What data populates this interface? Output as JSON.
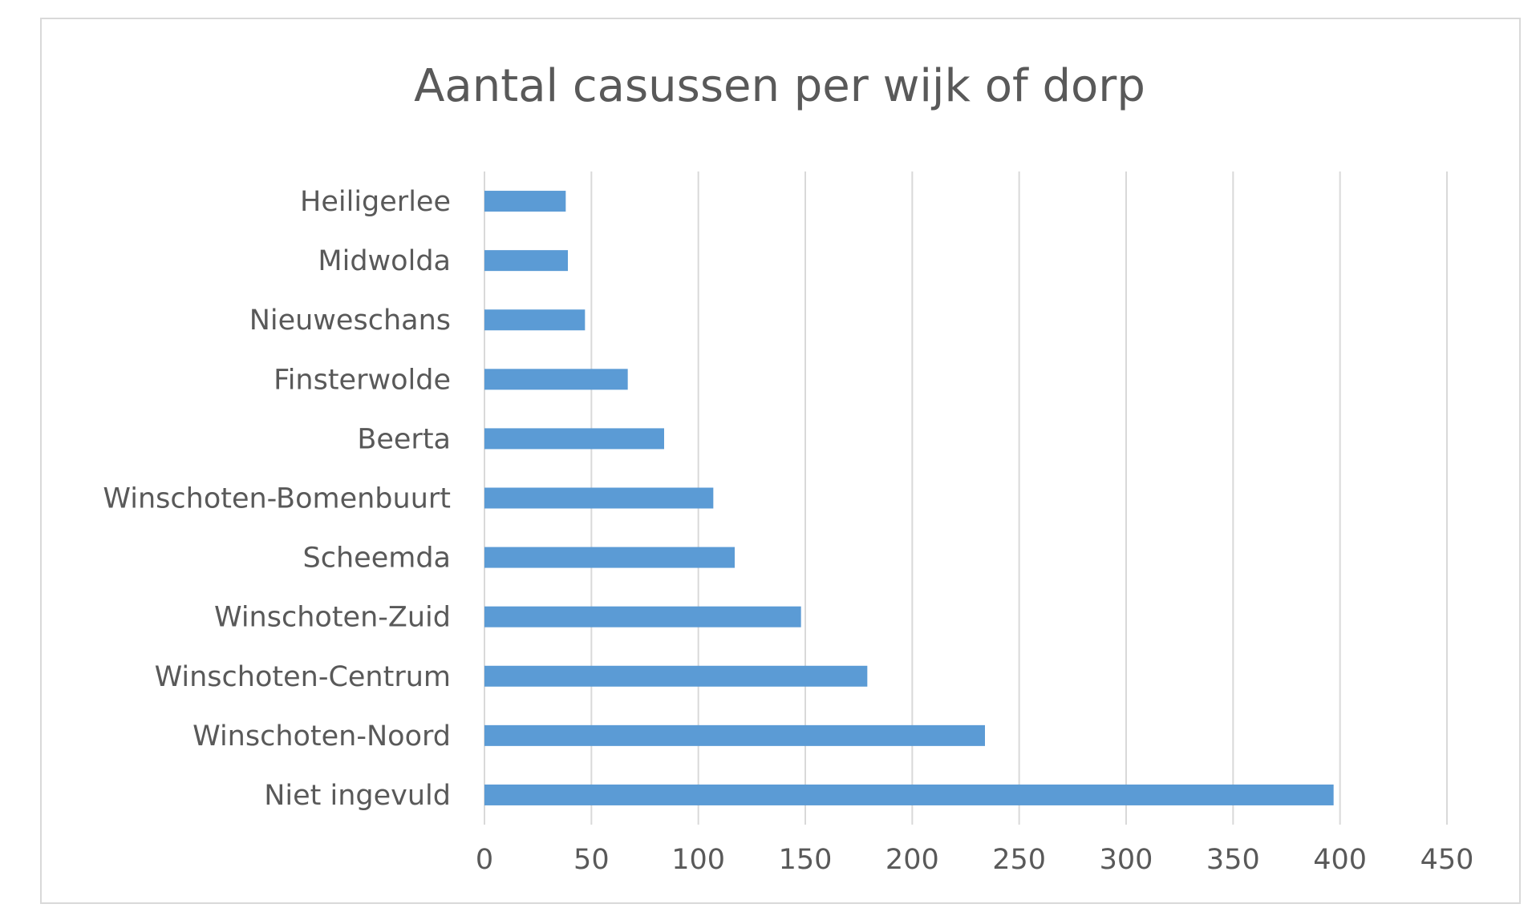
{
  "chart_data": {
    "type": "bar",
    "orientation": "horizontal",
    "title": "Aantal casussen per wijk of dorp",
    "xlabel": "",
    "ylabel": "",
    "categories": [
      "Heiligerlee",
      "Midwolda",
      "Nieuweschans",
      "Finsterwolde",
      "Beerta",
      "Winschoten-Bomenbuurt",
      "Scheemda",
      "Winschoten-Zuid",
      "Winschoten-Centrum",
      "Winschoten-Noord",
      "Niet ingevuld"
    ],
    "values": [
      38,
      39,
      47,
      67,
      84,
      107,
      117,
      148,
      179,
      234,
      397
    ],
    "xlim": [
      0,
      450
    ],
    "xticks": [
      "0",
      "50",
      "100",
      "150",
      "200",
      "250",
      "300",
      "350",
      "400",
      "450"
    ],
    "grid": true,
    "legend": "none",
    "bar_color": "#5b9bd5",
    "grid_color": "#d9d9d9",
    "text_color": "#595959"
  }
}
